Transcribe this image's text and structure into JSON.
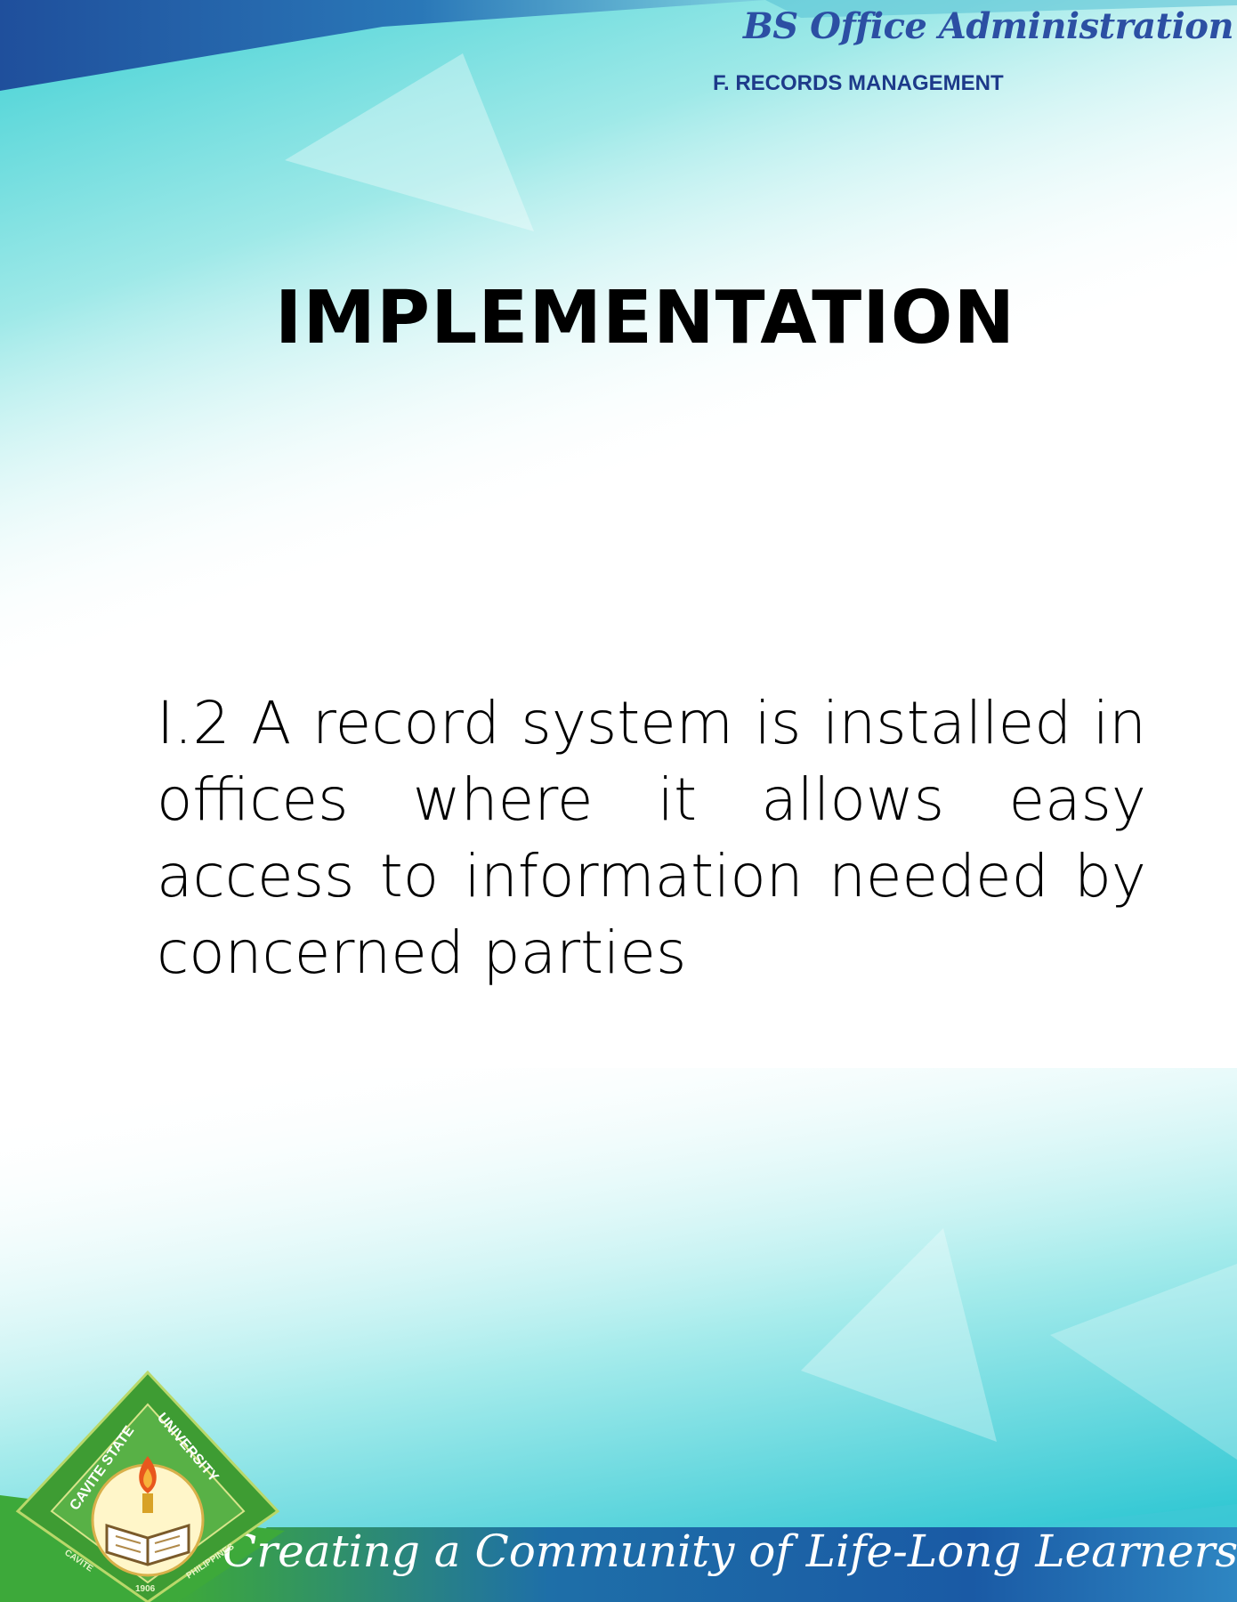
{
  "header": {
    "program_title": "BS Office Administration",
    "subject_title": "F. RECORDS  MANAGEMENT"
  },
  "main": {
    "heading": "IMPLEMENTATION",
    "body_text": "I.2 A record system is installed in offices where it allows easy access to information needed by concerned parties"
  },
  "footer": {
    "tagline": "Creating a Community of Life-Long Learners",
    "logo": {
      "text_left": "CAVITE STATE",
      "text_right": "UNIVERSITY",
      "text_bottom_left": "CAVITE",
      "text_bottom_right": "PHILIPPINES",
      "year": "1906"
    }
  },
  "colors": {
    "banner_blue": "#1f5aa8",
    "teal": "#4fd6d8",
    "footer_green": "#3daa3a",
    "title_blue": "#2c4fa3"
  }
}
